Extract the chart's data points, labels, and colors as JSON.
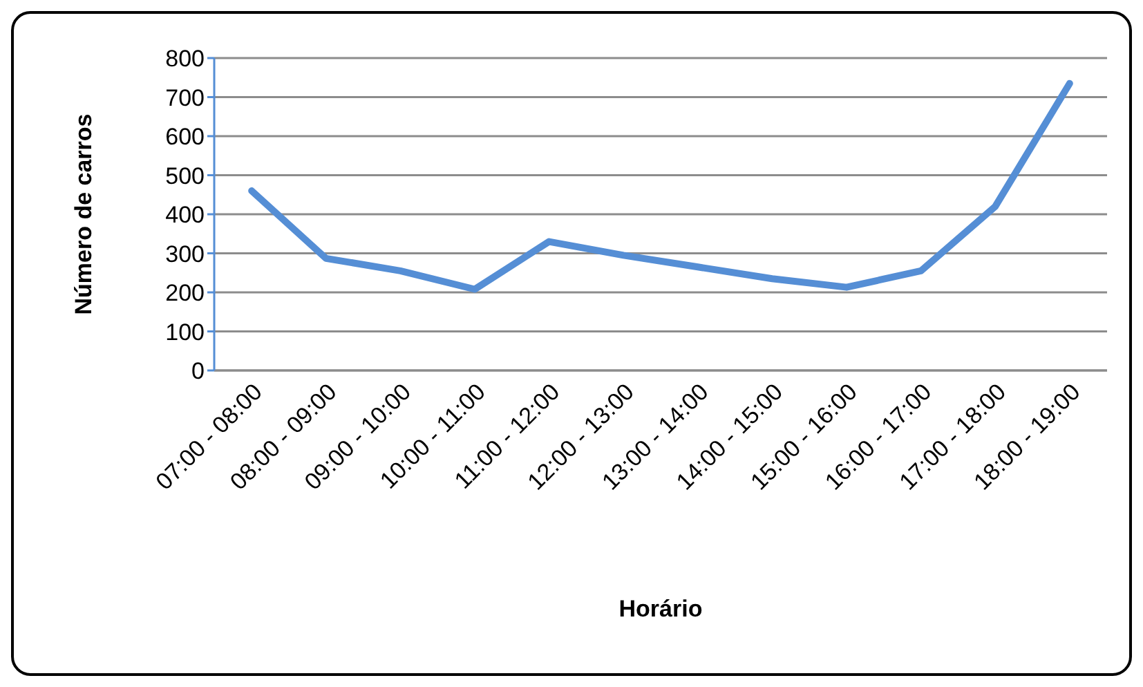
{
  "chart_data": {
    "type": "line",
    "xlabel": "Horário",
    "ylabel": "Número de carros",
    "categories": [
      "07:00 - 08:00",
      "08:00 - 09:00",
      "09:00 - 10:00",
      "10:00 - 11:00",
      "11:00 - 12:00",
      "12:00 - 13:00",
      "13:00 - 14:00",
      "14:00 - 15:00",
      "15:00 - 16:00",
      "16:00 - 17:00",
      "17:00 - 18:00",
      "18:00 - 19:00"
    ],
    "series": [
      {
        "color": "#558ed5",
        "values": [
          460,
          287,
          255,
          208,
          330,
          295,
          265,
          235,
          213,
          255,
          420,
          735
        ]
      }
    ],
    "ylim": [
      0,
      800
    ],
    "yticks": [
      0,
      100,
      200,
      300,
      400,
      500,
      600,
      700,
      800
    ],
    "grid": "y",
    "marker": "none",
    "line_style": "solid",
    "legend": false
  }
}
